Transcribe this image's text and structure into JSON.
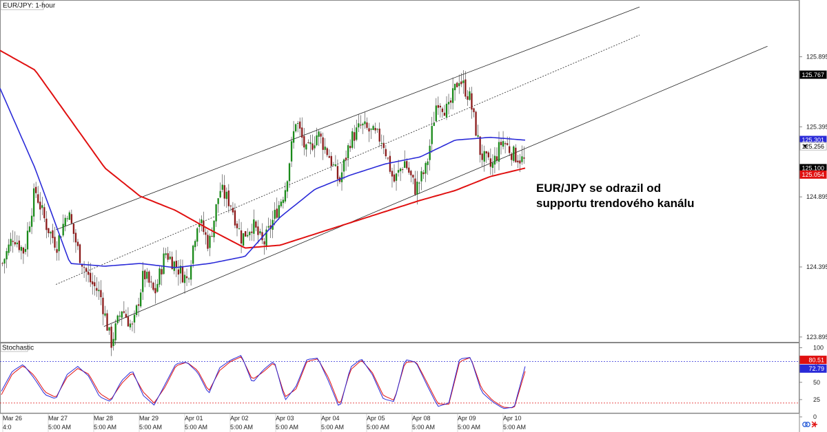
{
  "chart_title": "EUR/JPY: 1-hour",
  "indicator_label": "Stochastic",
  "annotation": [
    "EUR/JPY se odrazil od",
    "supportu trendového kanálu"
  ],
  "price_ticks": [
    "125.895",
    "125.395",
    "124.895",
    "124.395",
    "123.895"
  ],
  "stoch_ticks": [
    "100",
    "75",
    "50",
    "25",
    "0"
  ],
  "price_boxes": [
    {
      "label": "125.767",
      "value": 125.767,
      "bg": "#000000",
      "fg": "#ffffff"
    },
    {
      "label": "125.301",
      "value": 125.301,
      "bg": "#2a2ad8",
      "fg": "#ffffff"
    },
    {
      "label": "125.256",
      "value": 125.256,
      "bg": "#ffffff",
      "fg": "#000000",
      "arrow": true
    },
    {
      "label": "125.100",
      "value": 125.1,
      "bg": "#000000",
      "fg": "#ffffff"
    },
    {
      "label": "125.054",
      "value": 125.054,
      "bg": "#e01010",
      "fg": "#ffffff"
    }
  ],
  "stoch_boxes": [
    {
      "label": "80.51",
      "value": 80.51,
      "bg": "#e01010",
      "fg": "#ffffff"
    },
    {
      "label": "72.79",
      "value": 72.79,
      "bg": "#2a2ad8",
      "fg": "#ffffff"
    }
  ],
  "x_dates": [
    "Mar 26",
    "Mar 27",
    "Mar 28",
    "Mar 29",
    "Apr 01",
    "Apr 02",
    "Apr 03",
    "Apr 04",
    "Apr 05",
    "Apr 08",
    "Apr 09",
    "Apr 10"
  ],
  "x_times": [
    "4:0",
    "5:00 AM",
    "5:00 AM",
    "5:00 AM",
    "5:00 AM",
    "5:00 AM",
    "5:00 AM",
    "5:00 AM",
    "5:00 AM",
    "5:00 AM",
    "5:00 AM",
    "5:00 AM"
  ],
  "colors": {
    "up": "#1a8a1a",
    "down": "#8b1a1a",
    "sma_fast": "#2a2ad8",
    "sma_slow": "#e01010",
    "stoch_k": "#2a2ad8",
    "stoch_d": "#e01010",
    "overbought": "#2a2ad8",
    "oversold": "#e01010"
  },
  "icons": [
    "link-icon",
    "arrow-right-icon"
  ],
  "chart_data": {
    "type": "candlestick",
    "instrument": "EUR/JPY",
    "timeframe": "1-hour",
    "price_range": [
      123.86,
      126.3
    ],
    "stoch_range": [
      0,
      100
    ],
    "overbought": 80,
    "oversold": 20,
    "price_path": [
      124.42,
      124.62,
      124.5,
      124.95,
      124.7,
      124.55,
      124.8,
      124.5,
      124.3,
      124.2,
      123.85,
      124.1,
      123.95,
      124.35,
      124.2,
      124.5,
      124.4,
      124.3,
      124.75,
      124.55,
      124.95,
      124.85,
      124.6,
      124.7,
      124.55,
      124.75,
      124.95,
      125.45,
      125.2,
      125.35,
      125.2,
      125.0,
      125.3,
      125.4,
      125.35,
      125.3,
      125.0,
      125.15,
      124.95,
      125.1,
      125.6,
      125.5,
      125.75,
      125.6,
      125.2,
      125.1,
      125.3,
      125.2,
      125.15
    ],
    "sma_slow_path": [
      125.94,
      125.8,
      125.45,
      125.1,
      124.9,
      124.8,
      124.66,
      124.53,
      124.55,
      124.63,
      124.71,
      124.79,
      124.87,
      124.94,
      125.04,
      125.1
    ],
    "sma_fast_path": [
      125.67,
      125.1,
      124.42,
      124.4,
      124.42,
      124.39,
      124.42,
      124.47,
      124.75,
      124.95,
      125.05,
      125.13,
      125.18,
      125.3,
      125.32,
      125.3
    ],
    "channel": {
      "upper": [
        [
          0.07,
          124.66
        ],
        [
          0.8,
          126.25
        ]
      ],
      "middle": [
        [
          0.07,
          124.27
        ],
        [
          0.8,
          126.05
        ]
      ],
      "lower": [
        [
          0.13,
          123.97
        ],
        [
          0.96,
          125.97
        ]
      ]
    },
    "stoch_k_path": [
      37,
      66,
      76,
      56,
      32,
      26,
      61,
      73,
      59,
      29,
      22,
      52,
      67,
      31,
      17,
      47,
      77,
      79,
      64,
      33,
      71,
      82,
      89,
      49,
      68,
      81,
      24,
      44,
      83,
      85,
      51,
      12,
      72,
      84,
      61,
      26,
      22,
      83,
      79,
      46,
      15,
      20,
      84,
      86,
      36,
      22,
      12,
      14,
      73
    ],
    "stoch_d_path": [
      32,
      62,
      74,
      60,
      36,
      28,
      57,
      70,
      62,
      34,
      24,
      48,
      64,
      36,
      20,
      43,
      74,
      79,
      67,
      37,
      67,
      80,
      87,
      54,
      65,
      79,
      29,
      40,
      80,
      84,
      56,
      16,
      68,
      82,
      64,
      31,
      24,
      79,
      80,
      50,
      19,
      18,
      80,
      86,
      41,
      24,
      14,
      13,
      66
    ]
  }
}
